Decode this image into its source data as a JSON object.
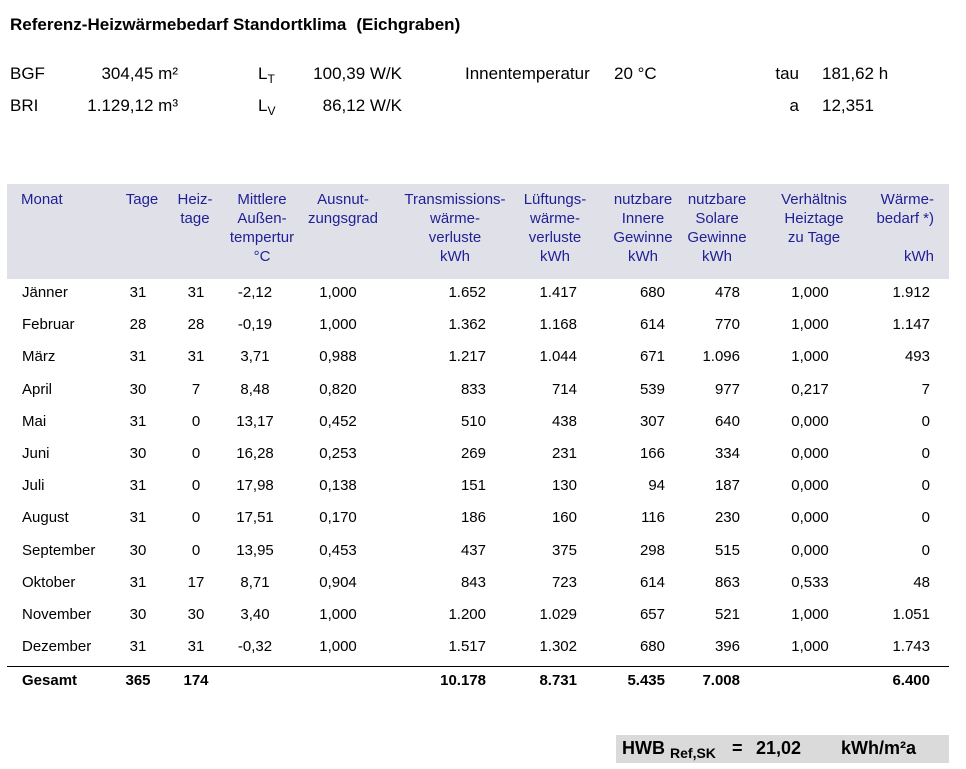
{
  "title_main": "Referenz-Heizwärmebedarf Standortklima",
  "title_location": "(Eichgraben)",
  "params": {
    "bgf_label": "BGF",
    "bgf_value": "304,45 m²",
    "bri_label": "BRI",
    "bri_value": "1.129,12 m³",
    "lt_label": "L",
    "lt_sub": "T",
    "lt_value": "100,39 W/K",
    "lv_label": "L",
    "lv_sub": "V",
    "lv_value": "86,12 W/K",
    "innentemp_label": "Innentemperatur",
    "innentemp_value": "20 °C",
    "tau_label": "tau",
    "tau_value": "181,62 h",
    "a_label": "a",
    "a_value": "12,351"
  },
  "table": {
    "headers": {
      "monat": "Monat",
      "tage": "Tage",
      "heiztage": "Heiz-\ntage",
      "temp": "Mittlere\nAußen-\ntempertur\n°C",
      "ausnutzung": "Ausnut-\nzungsgrad",
      "transmission": "Transmissions-\nwärme-\nverluste\nkWh",
      "lueftung": "Lüftungs-\nwärme-\nverluste\nkWh",
      "innere": "nutzbare\nInnere\nGewinne\nkWh",
      "solare": "nutzbare\nSolare\nGewinne\nkWh",
      "verhaeltnis": "Verhältnis\nHeiztage\nzu Tage",
      "waermebedarf": "Wärme-\nbedarf *)\n\nkWh"
    },
    "rows": [
      [
        "Jänner",
        "31",
        "31",
        "-2,12",
        "1,000",
        "1.652",
        "1.417",
        "680",
        "478",
        "1,000",
        "1.912"
      ],
      [
        "Februar",
        "28",
        "28",
        "-0,19",
        "1,000",
        "1.362",
        "1.168",
        "614",
        "770",
        "1,000",
        "1.147"
      ],
      [
        "März",
        "31",
        "31",
        "3,71",
        "0,988",
        "1.217",
        "1.044",
        "671",
        "1.096",
        "1,000",
        "493"
      ],
      [
        "April",
        "30",
        "7",
        "8,48",
        "0,820",
        "833",
        "714",
        "539",
        "977",
        "0,217",
        "7"
      ],
      [
        "Mai",
        "31",
        "0",
        "13,17",
        "0,452",
        "510",
        "438",
        "307",
        "640",
        "0,000",
        "0"
      ],
      [
        "Juni",
        "30",
        "0",
        "16,28",
        "0,253",
        "269",
        "231",
        "166",
        "334",
        "0,000",
        "0"
      ],
      [
        "Juli",
        "31",
        "0",
        "17,98",
        "0,138",
        "151",
        "130",
        "94",
        "187",
        "0,000",
        "0"
      ],
      [
        "August",
        "31",
        "0",
        "17,51",
        "0,170",
        "186",
        "160",
        "116",
        "230",
        "0,000",
        "0"
      ],
      [
        "September",
        "30",
        "0",
        "13,95",
        "0,453",
        "437",
        "375",
        "298",
        "515",
        "0,000",
        "0"
      ],
      [
        "Oktober",
        "31",
        "17",
        "8,71",
        "0,904",
        "843",
        "723",
        "614",
        "863",
        "0,533",
        "48"
      ],
      [
        "November",
        "30",
        "30",
        "3,40",
        "1,000",
        "1.200",
        "1.029",
        "657",
        "521",
        "1,000",
        "1.051"
      ],
      [
        "Dezember",
        "31",
        "31",
        "-0,32",
        "1,000",
        "1.517",
        "1.302",
        "680",
        "396",
        "1,000",
        "1.743"
      ]
    ],
    "total": [
      "Gesamt",
      "365",
      "174",
      "",
      "",
      "10.178",
      "8.731",
      "5.435",
      "7.008",
      "",
      "6.400"
    ]
  },
  "hwb": {
    "label": "HWB",
    "sub": "Ref,SK",
    "equals": "=",
    "value": "21,02",
    "unit": "kWh/m²a"
  }
}
